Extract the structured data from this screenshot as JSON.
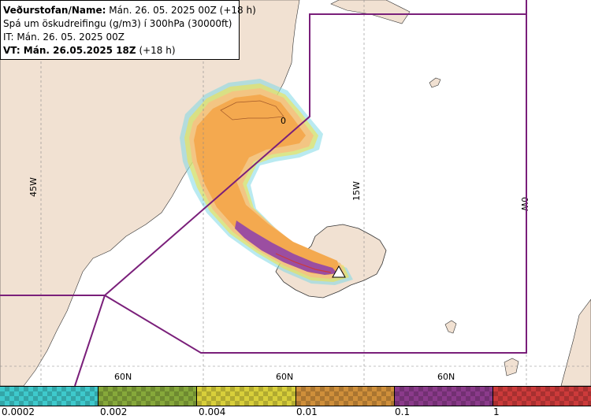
{
  "info": {
    "line1_label": "Veðurstofan/Name:",
    "line1_value": "Mán. 26. 05. 2025 00Z (+18 h)",
    "line2": "Spá um öskudreifingu (g/m3) í 300hPa (30000ft)",
    "line3": "IT: Mán. 26. 05. 2025 00Z",
    "line4_label": "VT: Mán. 26.05.2025 18Z",
    "line4_value": "(+18 h)"
  },
  "grid": {
    "meridians": [
      "45W",
      "15W",
      "0W"
    ],
    "parallels": [
      "60N",
      "60N",
      "60N"
    ],
    "contour_label": "0"
  },
  "legend": {
    "ticks": [
      "0.0002",
      "0.002",
      "0.004",
      "0.01",
      "0.1",
      "1"
    ],
    "colors": [
      "#3ec9cc",
      "#86a83a",
      "#d8cf3a",
      "#cf8f3a",
      "#8b3a8b",
      "#cc3a3a"
    ]
  },
  "colors": {
    "land": "#f1e1d2",
    "sea": "#ffffff",
    "boundary": "#7a1f7a",
    "ash_low": "#f3c583",
    "ash_mid": "#f4a94f",
    "ash_high": "#9b4ea1",
    "ash_fringe_yellow": "#f2e24a",
    "ash_fringe_cyan": "#7fd9e6"
  }
}
